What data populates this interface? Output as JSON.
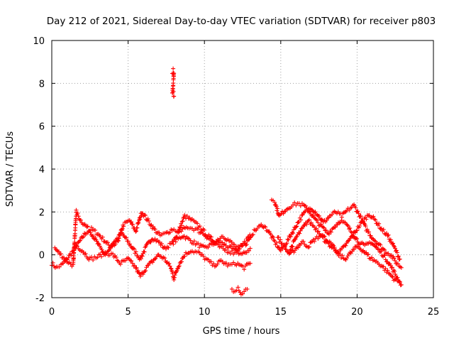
{
  "chart_data": {
    "type": "scatter",
    "title": "Day 212 of 2021, Sidereal Day-to-day VTEC variation (SDTVAR) for receiver p803",
    "xlabel": "GPS time / hours",
    "ylabel": "SDTVAR / TECUs",
    "xlim": [
      0,
      25
    ],
    "ylim": [
      -2,
      10
    ],
    "xticks": [
      "0",
      "5",
      "10",
      "15",
      "20",
      "25"
    ],
    "yticks": [
      "-2",
      "0",
      "2",
      "4",
      "6",
      "8",
      "10"
    ],
    "grid": true,
    "marker": "+",
    "marker_color": "#ff0000",
    "series": [
      {
        "name": "SDTVAR",
        "tracks": [
          [
            [
              0.0,
              -0.4
            ],
            [
              0.3,
              -0.6
            ],
            [
              0.6,
              -0.5
            ],
            [
              0.9,
              -0.3
            ],
            [
              1.2,
              0.0
            ],
            [
              1.5,
              0.3
            ],
            [
              1.8,
              0.6
            ],
            [
              2.2,
              1.0
            ],
            [
              2.6,
              1.2
            ],
            [
              3.0,
              1.0
            ],
            [
              3.4,
              0.7
            ],
            [
              3.8,
              0.4
            ],
            [
              4.2,
              0.7
            ],
            [
              4.6,
              1.0
            ],
            [
              5.0,
              0.6
            ],
            [
              5.4,
              0.2
            ],
            [
              5.8,
              -0.2
            ],
            [
              6.2,
              0.4
            ],
            [
              6.6,
              0.8
            ],
            [
              7.0,
              0.6
            ],
            [
              7.4,
              0.3
            ],
            [
              7.8,
              0.5
            ],
            [
              8.2,
              0.7
            ],
            [
              8.6,
              0.9
            ],
            [
              9.0,
              0.7
            ],
            [
              9.5,
              0.5
            ],
            [
              10.0,
              0.3
            ],
            [
              10.5,
              0.5
            ],
            [
              11.0,
              0.6
            ],
            [
              11.5,
              0.4
            ],
            [
              12.0,
              0.2
            ],
            [
              12.5,
              0.0
            ],
            [
              13.0,
              0.3
            ]
          ],
          [
            [
              0.2,
              0.3
            ],
            [
              0.6,
              0.0
            ],
            [
              1.0,
              -0.3
            ],
            [
              1.4,
              -0.5
            ],
            [
              1.6,
              2.0
            ],
            [
              1.9,
              1.6
            ],
            [
              2.3,
              1.3
            ],
            [
              2.7,
              0.9
            ],
            [
              3.1,
              0.4
            ],
            [
              3.5,
              0.0
            ],
            [
              3.9,
              0.3
            ],
            [
              4.3,
              0.6
            ],
            [
              4.7,
              1.4
            ],
            [
              5.1,
              1.6
            ],
            [
              5.5,
              1.1
            ],
            [
              5.9,
              2.0
            ],
            [
              6.3,
              1.6
            ],
            [
              6.7,
              1.2
            ],
            [
              7.1,
              0.9
            ],
            [
              7.5,
              1.0
            ],
            [
              7.9,
              1.2
            ],
            [
              8.3,
              1.1
            ],
            [
              8.7,
              1.8
            ],
            [
              9.2,
              1.6
            ],
            [
              9.7,
              1.3
            ],
            [
              10.2,
              0.9
            ],
            [
              10.7,
              0.6
            ],
            [
              11.2,
              0.9
            ],
            [
              11.7,
              0.6
            ],
            [
              12.2,
              0.3
            ],
            [
              12.7,
              0.5
            ],
            [
              13.0,
              0.8
            ]
          ],
          [
            [
              1.5,
              0.5
            ],
            [
              2.0,
              0.2
            ],
            [
              2.5,
              -0.2
            ],
            [
              3.0,
              -0.1
            ],
            [
              3.5,
              0.1
            ],
            [
              4.0,
              0.0
            ],
            [
              4.5,
              -0.4
            ],
            [
              5.0,
              -0.2
            ],
            [
              5.5,
              -0.6
            ],
            [
              5.8,
              -1.0
            ],
            [
              6.2,
              -0.6
            ],
            [
              6.6,
              -0.3
            ],
            [
              7.0,
              0.0
            ],
            [
              7.4,
              -0.2
            ],
            [
              7.8,
              -0.6
            ],
            [
              8.0,
              -1.1
            ],
            [
              8.3,
              -0.5
            ],
            [
              8.7,
              0.0
            ],
            [
              9.1,
              0.2
            ],
            [
              9.6,
              0.1
            ],
            [
              10.1,
              -0.2
            ],
            [
              10.6,
              -0.5
            ],
            [
              11.1,
              -0.3
            ],
            [
              11.6,
              -0.5
            ],
            [
              12.1,
              -0.4
            ],
            [
              12.6,
              -0.6
            ],
            [
              13.0,
              -0.4
            ]
          ],
          [
            [
              7.9,
              0.6
            ],
            [
              8.4,
              1.1
            ],
            [
              8.9,
              1.3
            ],
            [
              9.4,
              1.2
            ],
            [
              9.9,
              1.0
            ],
            [
              10.4,
              0.7
            ],
            [
              10.9,
              0.4
            ],
            [
              11.4,
              0.2
            ],
            [
              11.9,
              0.1
            ],
            [
              12.4,
              0.4
            ],
            [
              12.9,
              0.8
            ],
            [
              13.4,
              1.2
            ],
            [
              13.8,
              1.4
            ],
            [
              14.2,
              1.1
            ],
            [
              14.6,
              0.6
            ],
            [
              15.0,
              0.2
            ],
            [
              15.4,
              0.6
            ],
            [
              15.8,
              1.1
            ],
            [
              16.2,
              1.6
            ],
            [
              16.6,
              2.0
            ],
            [
              17.0,
              2.2
            ],
            [
              17.4,
              1.9
            ],
            [
              17.8,
              1.5
            ],
            [
              18.2,
              1.8
            ],
            [
              18.6,
              2.0
            ],
            [
              19.0,
              1.8
            ],
            [
              19.4,
              2.1
            ],
            [
              19.8,
              2.3
            ],
            [
              20.2,
              1.8
            ],
            [
              20.6,
              1.2
            ],
            [
              21.0,
              0.8
            ],
            [
              21.4,
              0.5
            ],
            [
              21.8,
              0.2
            ],
            [
              22.2,
              0.0
            ],
            [
              22.6,
              -0.4
            ],
            [
              22.9,
              -0.6
            ]
          ],
          [
            [
              14.4,
              2.6
            ],
            [
              14.6,
              2.5
            ],
            [
              14.9,
              1.8
            ],
            [
              15.3,
              2.1
            ],
            [
              15.7,
              2.3
            ],
            [
              16.1,
              2.4
            ],
            [
              16.5,
              2.3
            ],
            [
              16.9,
              2.0
            ],
            [
              17.3,
              1.6
            ],
            [
              17.7,
              1.3
            ],
            [
              18.1,
              1.0
            ],
            [
              18.5,
              1.3
            ],
            [
              18.9,
              1.6
            ],
            [
              19.3,
              1.4
            ],
            [
              19.7,
              1.0
            ],
            [
              20.1,
              0.6
            ],
            [
              20.5,
              0.4
            ],
            [
              20.9,
              0.6
            ],
            [
              21.3,
              0.3
            ],
            [
              21.7,
              0.0
            ],
            [
              22.1,
              -0.4
            ],
            [
              22.5,
              -0.9
            ],
            [
              22.9,
              -1.4
            ]
          ],
          [
            [
              14.8,
              0.8
            ],
            [
              15.2,
              0.4
            ],
            [
              15.6,
              0.0
            ],
            [
              16.0,
              0.3
            ],
            [
              16.4,
              0.6
            ],
            [
              16.8,
              0.4
            ],
            [
              17.2,
              0.7
            ],
            [
              17.6,
              0.9
            ],
            [
              18.0,
              0.6
            ],
            [
              18.4,
              0.3
            ],
            [
              18.8,
              0.1
            ],
            [
              19.2,
              0.4
            ],
            [
              19.6,
              0.8
            ],
            [
              20.0,
              1.2
            ],
            [
              20.4,
              1.6
            ],
            [
              20.8,
              1.9
            ],
            [
              21.2,
              1.6
            ],
            [
              21.6,
              1.2
            ],
            [
              22.0,
              0.9
            ],
            [
              22.4,
              0.4
            ],
            [
              22.8,
              -0.2
            ]
          ],
          [
            [
              15.6,
              0.2
            ],
            [
              16.0,
              0.8
            ],
            [
              16.4,
              1.2
            ],
            [
              16.8,
              1.6
            ],
            [
              17.2,
              1.3
            ],
            [
              17.6,
              1.0
            ],
            [
              18.0,
              0.7
            ],
            [
              18.4,
              0.4
            ],
            [
              18.8,
              0.0
            ],
            [
              19.2,
              -0.2
            ],
            [
              19.6,
              0.1
            ],
            [
              20.0,
              0.4
            ],
            [
              20.4,
              0.2
            ],
            [
              20.8,
              -0.1
            ],
            [
              21.2,
              -0.3
            ],
            [
              21.6,
              -0.5
            ],
            [
              22.0,
              -0.8
            ],
            [
              22.4,
              -1.1
            ],
            [
              22.8,
              -1.3
            ]
          ],
          [
            [
              11.8,
              -1.6
            ],
            [
              12.0,
              -1.7
            ],
            [
              12.2,
              -1.6
            ],
            [
              12.4,
              -1.8
            ],
            [
              12.6,
              -1.7
            ],
            [
              12.8,
              -1.6
            ]
          ],
          [
            [
              7.9,
              8.5
            ],
            [
              7.95,
              8.6
            ],
            [
              8.0,
              8.4
            ],
            [
              7.9,
              7.5
            ],
            [
              7.95,
              7.6
            ],
            [
              8.0,
              7.4
            ]
          ]
        ]
      }
    ]
  }
}
